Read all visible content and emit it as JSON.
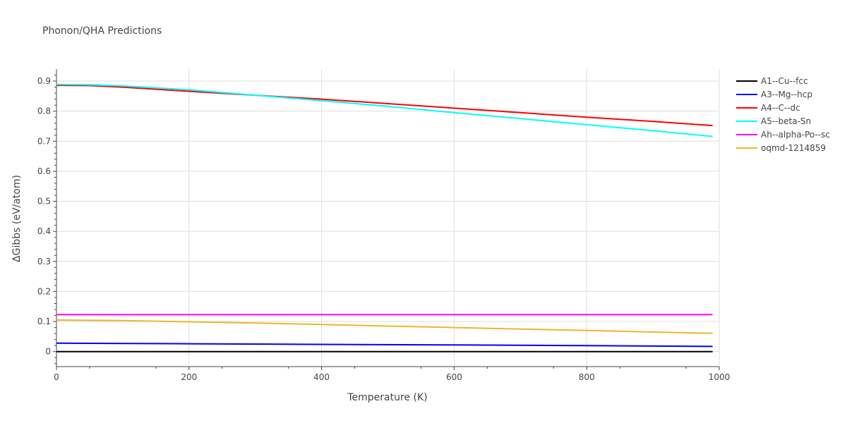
{
  "chart_data": {
    "type": "line",
    "title": "Phonon/QHA Predictions",
    "xlabel": "Temperature (K)",
    "ylabel": "ΔGibbs (eV/atom)",
    "xlim": [
      0,
      1000
    ],
    "ylim": [
      -0.05,
      0.94
    ],
    "xticks": [
      0,
      200,
      400,
      600,
      800,
      1000
    ],
    "yticks": [
      0,
      0.1,
      0.2,
      0.3,
      0.4,
      0.5,
      0.6,
      0.7,
      0.8,
      0.9
    ],
    "xtick_labels": [
      "0",
      "200",
      "400",
      "600",
      "800",
      "1000"
    ],
    "ytick_labels": [
      "0",
      "0.1",
      "0.2",
      "0.3",
      "0.4",
      "0.5",
      "0.6",
      "0.7",
      "0.8",
      "0.9"
    ],
    "grid": true,
    "legend_position": "right",
    "series": [
      {
        "name": "A1--Cu--fcc",
        "color": "#000000",
        "x": [
          0,
          990
        ],
        "y": [
          0.0,
          0.0
        ]
      },
      {
        "name": "A3--Mg--hcp",
        "color": "#0000ff",
        "x": [
          0,
          200,
          400,
          600,
          800,
          990
        ],
        "y": [
          0.028,
          0.026,
          0.024,
          0.022,
          0.02,
          0.017
        ]
      },
      {
        "name": "A4--C--dc",
        "color": "#ff0000",
        "x": [
          0,
          50,
          100,
          200,
          300,
          400,
          500,
          600,
          700,
          800,
          900,
          990
        ],
        "y": [
          0.886,
          0.885,
          0.88,
          0.866,
          0.853,
          0.84,
          0.825,
          0.81,
          0.795,
          0.78,
          0.766,
          0.752
        ]
      },
      {
        "name": "A5--beta-Sn",
        "color": "#00ffff",
        "x": [
          0,
          50,
          100,
          200,
          300,
          400,
          500,
          600,
          700,
          800,
          900,
          990
        ],
        "y": [
          0.889,
          0.888,
          0.884,
          0.871,
          0.853,
          0.835,
          0.816,
          0.795,
          0.775,
          0.755,
          0.735,
          0.716
        ]
      },
      {
        "name": "Ah--alpha-Po--sc",
        "color": "#ff00ff",
        "x": [
          0,
          990
        ],
        "y": [
          0.123,
          0.123
        ]
      },
      {
        "name": "oqmd-1214859",
        "color": "#f0b429",
        "x": [
          0,
          100,
          200,
          300,
          400,
          500,
          600,
          700,
          800,
          900,
          990
        ],
        "y": [
          0.105,
          0.103,
          0.099,
          0.095,
          0.09,
          0.085,
          0.08,
          0.075,
          0.07,
          0.065,
          0.061
        ]
      }
    ]
  }
}
